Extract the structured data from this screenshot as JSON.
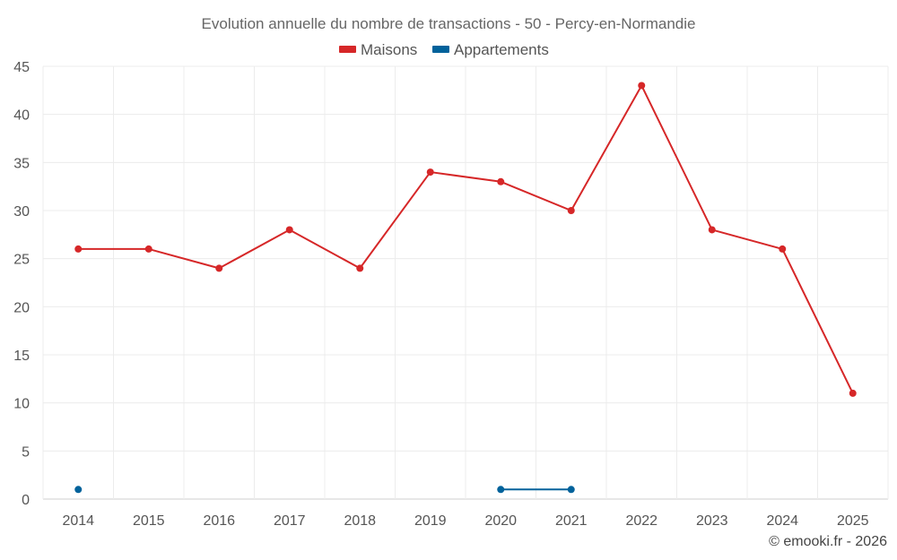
{
  "chart_data": {
    "type": "line",
    "title": "Evolution annuelle du nombre de transactions - 50 - Percy-en-Normandie",
    "categories": [
      "2014",
      "2015",
      "2016",
      "2017",
      "2018",
      "2019",
      "2020",
      "2021",
      "2022",
      "2023",
      "2024",
      "2025"
    ],
    "ylim": [
      0,
      45
    ],
    "yticks": [
      0,
      5,
      10,
      15,
      20,
      25,
      30,
      35,
      40,
      45
    ],
    "grid": true,
    "legend_position": "top-center",
    "series": [
      {
        "name": "Maisons",
        "color": "#d62728",
        "values": [
          26,
          26,
          24,
          28,
          24,
          34,
          33,
          30,
          43,
          28,
          26,
          11
        ]
      },
      {
        "name": "Appartements",
        "color": "#00629b",
        "values": [
          1,
          null,
          null,
          null,
          null,
          null,
          1,
          1,
          null,
          null,
          null,
          null
        ]
      }
    ],
    "credit": "© emooki.fr - 2026"
  }
}
